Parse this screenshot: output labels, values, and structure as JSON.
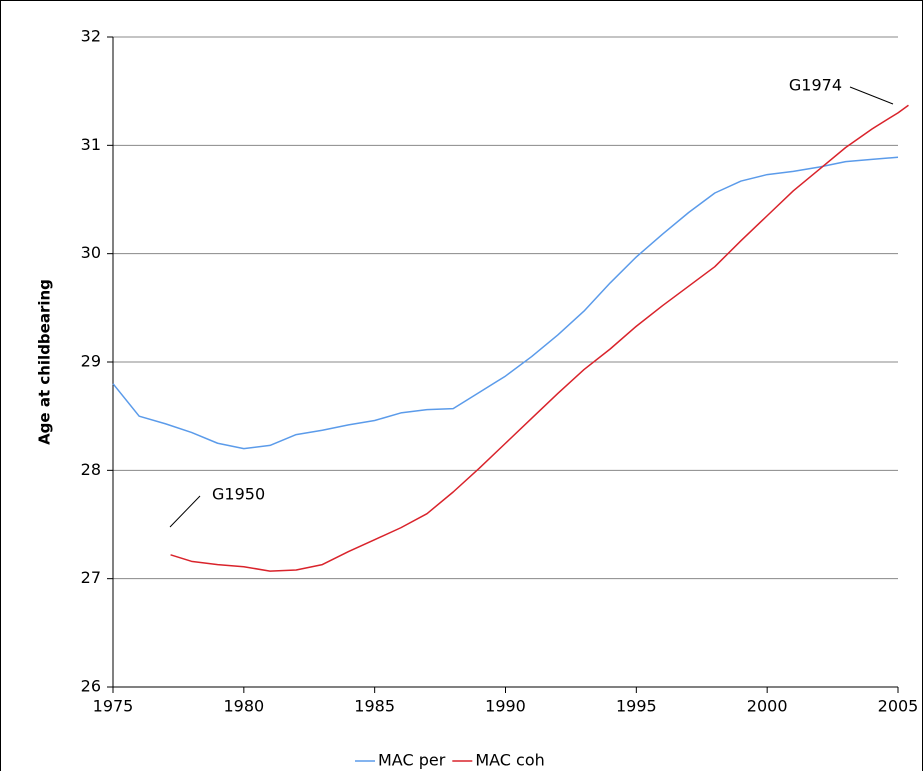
{
  "chart_data": {
    "type": "line",
    "ylabel": "Age at childbearing",
    "xlim": [
      1975,
      2005
    ],
    "xticks": [
      1975,
      1980,
      1985,
      1990,
      1995,
      2000,
      2005
    ],
    "ylim": [
      26,
      32
    ],
    "yticks": [
      26,
      27,
      28,
      29,
      30,
      31,
      32
    ],
    "grid": true,
    "legend": "bottom",
    "annotations": [
      "G1950",
      "G1974"
    ],
    "series": [
      {
        "name": "MAC per",
        "color": "#5b9bea",
        "x": [
          1975,
          1976,
          1977,
          1978,
          1979,
          1980,
          1981,
          1982,
          1983,
          1984,
          1985,
          1986,
          1987,
          1988,
          1989,
          1990,
          1991,
          1992,
          1993,
          1994,
          1995,
          1996,
          1997,
          1998,
          1999,
          2000,
          2001,
          2002,
          2003,
          2004,
          2005
        ],
        "values": [
          28.8,
          28.5,
          28.43,
          28.35,
          28.25,
          28.2,
          28.23,
          28.33,
          28.37,
          28.42,
          28.46,
          28.53,
          28.56,
          28.57,
          28.72,
          28.87,
          29.05,
          29.25,
          29.47,
          29.73,
          29.97,
          30.18,
          30.38,
          30.56,
          30.67,
          30.73,
          30.76,
          30.8,
          30.85,
          30.87,
          30.89
        ]
      },
      {
        "name": "MAC coh",
        "color": "#d9232b",
        "x": [
          1977.2,
          1978,
          1979,
          1980,
          1981,
          1982,
          1983,
          1984,
          1985,
          1986,
          1987,
          1988,
          1989,
          1990,
          1991,
          1992,
          1993,
          1994,
          1995,
          1996,
          1997,
          1998,
          1999,
          2000,
          2001,
          2002,
          2003,
          2004,
          2005,
          2005.4
        ],
        "values": [
          27.22,
          27.16,
          27.13,
          27.11,
          27.07,
          27.08,
          27.13,
          27.25,
          27.36,
          27.47,
          27.6,
          27.8,
          28.02,
          28.25,
          28.48,
          28.71,
          28.93,
          29.12,
          29.33,
          29.52,
          29.7,
          29.88,
          30.12,
          30.35,
          30.58,
          30.78,
          30.98,
          31.15,
          31.3,
          31.37
        ]
      }
    ]
  }
}
